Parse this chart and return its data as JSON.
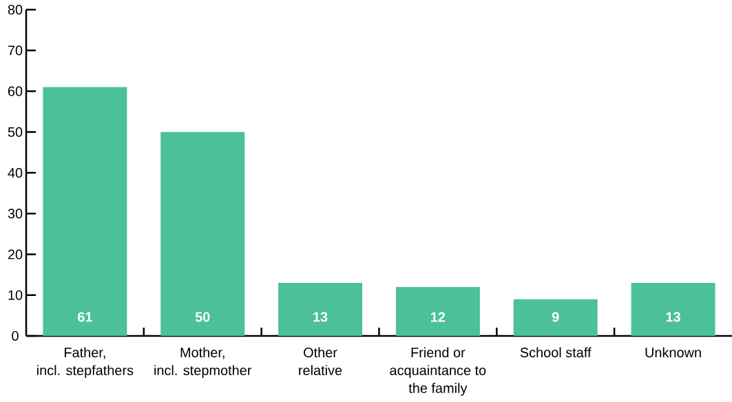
{
  "chart_data": {
    "type": "bar",
    "categories": [
      "Father,\nincl. stepfathers",
      "Mother,\nincl. stepmother",
      "Other\nrelative",
      "Friend or\nacquaintance to\nthe family",
      "School staff",
      "Unknown"
    ],
    "values": [
      61,
      50,
      13,
      12,
      9,
      13
    ],
    "color": "#4cbf9b",
    "ylim": [
      0,
      80
    ],
    "yticks": [
      0,
      10,
      20,
      30,
      40,
      50,
      60,
      70,
      80
    ],
    "data_labels": true
  }
}
